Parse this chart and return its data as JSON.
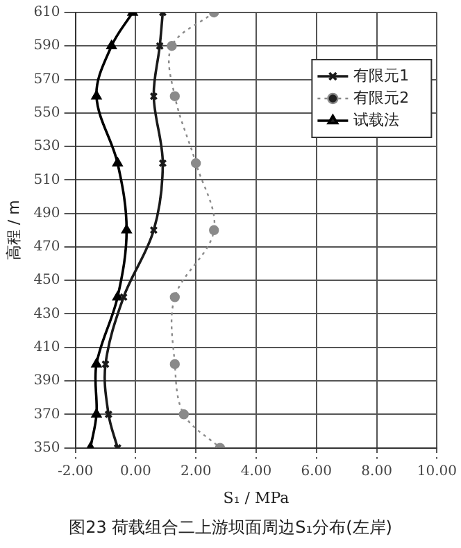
{
  "chart_data": {
    "type": "line",
    "xlabel": "S₁ / MPa",
    "ylabel": "高程 / m",
    "annotations": [
      "图23 荷载组合二上游坝面周边S₁分布(左岸)"
    ],
    "xlim": [
      -2,
      10
    ],
    "xticks": [
      {
        "value": -2,
        "label": "-2.00"
      },
      {
        "value": 0,
        "label": "0.00"
      },
      {
        "value": 2,
        "label": "2.00"
      },
      {
        "value": 4,
        "label": "4.00"
      },
      {
        "value": 6,
        "label": "6.00"
      },
      {
        "value": 8,
        "label": "8.00"
      },
      {
        "value": 10,
        "label": "10.00"
      }
    ],
    "ylim": [
      350,
      610
    ],
    "yticks": [
      350,
      370,
      390,
      410,
      430,
      450,
      470,
      490,
      510,
      530,
      550,
      570,
      590,
      610
    ],
    "grid": true,
    "legend": "top right",
    "series": [
      {
        "name": "有限元1",
        "color": "#1a1a1a",
        "marker": "cross",
        "line_style": "solid",
        "x": [
          0.9,
          0.8,
          0.6,
          0.9,
          0.6,
          -0.4,
          -1.0,
          -0.9,
          -0.6
        ],
        "values": [
          610,
          590,
          560,
          520,
          480,
          440,
          400,
          370,
          350
        ]
      },
      {
        "name": "有限元2",
        "color": "#8a8a8a",
        "marker": "circle",
        "line_style": "dotted",
        "x": [
          2.6,
          1.2,
          1.3,
          2.0,
          2.6,
          1.3,
          1.3,
          1.6,
          2.8
        ],
        "values": [
          610,
          590,
          560,
          520,
          480,
          440,
          400,
          370,
          350
        ]
      },
      {
        "name": "试载法",
        "color": "#000000",
        "marker": "triangle",
        "line_style": "solid",
        "x": [
          -0.1,
          -0.8,
          -1.3,
          -0.6,
          -0.3,
          -0.6,
          -1.3,
          -1.3,
          -1.5
        ],
        "values": [
          610,
          590,
          560,
          520,
          480,
          440,
          400,
          370,
          350
        ]
      }
    ]
  }
}
